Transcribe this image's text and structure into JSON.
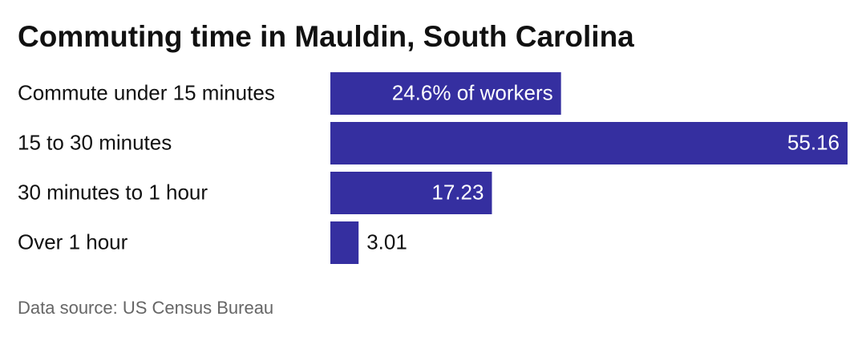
{
  "chart_data": {
    "type": "bar",
    "orientation": "horizontal",
    "title": "Commuting time in Mauldin, South Carolina",
    "categories": [
      "Commute under 15 minutes",
      "15 to 30 minutes",
      "30 minutes to 1 hour",
      "Over 1 hour"
    ],
    "values": [
      24.6,
      55.16,
      17.23,
      3.01
    ],
    "value_labels": [
      "24.6% of workers",
      "55.16",
      "17.23",
      "3.01"
    ],
    "color": "#352fa0",
    "source": "Data source: US Census Bureau"
  }
}
